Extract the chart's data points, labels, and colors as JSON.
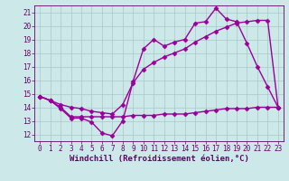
{
  "xlabel": "Windchill (Refroidissement éolien,°C)",
  "bg_color": "#cde8e8",
  "grid_color": "#aac8c8",
  "line_color": "#990099",
  "x_ticks": [
    0,
    1,
    2,
    3,
    4,
    5,
    6,
    7,
    8,
    9,
    10,
    11,
    12,
    13,
    14,
    15,
    16,
    17,
    18,
    19,
    20,
    21,
    22,
    23
  ],
  "ylim": [
    11.5,
    21.5
  ],
  "xlim": [
    -0.5,
    23.5
  ],
  "yticks": [
    12,
    13,
    14,
    15,
    16,
    17,
    18,
    19,
    20,
    21
  ],
  "line1_x": [
    0,
    1,
    2,
    3,
    4,
    5,
    6,
    7,
    8,
    9,
    10,
    11,
    12,
    13,
    14,
    15,
    16,
    17,
    18,
    19,
    20,
    21,
    22,
    23
  ],
  "line1_y": [
    14.8,
    14.5,
    13.9,
    13.2,
    13.2,
    12.9,
    12.1,
    11.9,
    13.0,
    15.9,
    18.3,
    19.0,
    18.5,
    18.8,
    19.0,
    20.2,
    20.3,
    21.3,
    20.5,
    20.3,
    18.7,
    17.0,
    15.5,
    14.0
  ],
  "line2_x": [
    0,
    1,
    2,
    3,
    4,
    5,
    6,
    7,
    8,
    9,
    10,
    11,
    12,
    13,
    14,
    15,
    16,
    17,
    18,
    19,
    20,
    21,
    22,
    23
  ],
  "line2_y": [
    14.8,
    14.5,
    14.2,
    14.0,
    13.9,
    13.7,
    13.6,
    13.5,
    14.2,
    15.8,
    16.8,
    17.3,
    17.7,
    18.0,
    18.3,
    18.8,
    19.2,
    19.6,
    19.9,
    20.2,
    20.3,
    20.4,
    20.4,
    14.0
  ],
  "line3_x": [
    0,
    1,
    2,
    3,
    4,
    5,
    6,
    7,
    8,
    9,
    10,
    11,
    12,
    13,
    14,
    15,
    16,
    17,
    18,
    19,
    20,
    21,
    22,
    23
  ],
  "line3_y": [
    14.8,
    14.5,
    14.0,
    13.3,
    13.3,
    13.3,
    13.3,
    13.3,
    13.3,
    13.4,
    13.4,
    13.4,
    13.5,
    13.5,
    13.5,
    13.6,
    13.7,
    13.8,
    13.9,
    13.9,
    13.9,
    14.0,
    14.0,
    14.0
  ],
  "marker": "D",
  "marker_size": 2.5,
  "line_width": 1.0,
  "font_color": "#660066",
  "tick_font_size": 5.5,
  "label_font_size": 6.5
}
